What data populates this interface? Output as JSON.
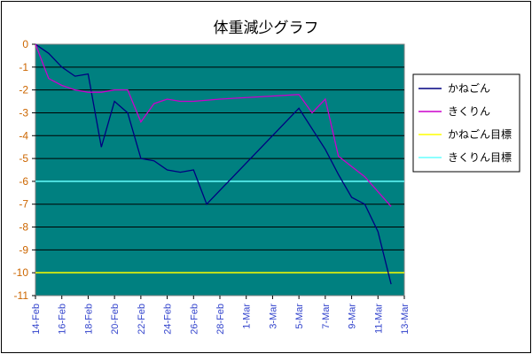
{
  "chart_data": {
    "type": "line",
    "title": "体重減少グラフ",
    "xlabel": "",
    "ylabel": "",
    "ylim": [
      -11,
      0
    ],
    "yticks": [
      0,
      -1,
      -2,
      -3,
      -4,
      -5,
      -6,
      -7,
      -8,
      -9,
      -10,
      -11
    ],
    "x_tick_labels": [
      "14-Feb",
      "16-Feb",
      "18-Feb",
      "20-Feb",
      "22-Feb",
      "24-Feb",
      "26-Feb",
      "28-Feb",
      "1-Mar",
      "3-Mar",
      "5-Mar",
      "7-Mar",
      "9-Mar",
      "11-Mar",
      "13-Mar"
    ],
    "x_range_days": [
      0,
      28
    ],
    "grid": true,
    "legend_position": "right",
    "plot_background": "#008080",
    "series": [
      {
        "name": "かねごん",
        "color": "#000080",
        "points": [
          {
            "x": 0,
            "y": 0.0
          },
          {
            "x": 1,
            "y": -0.4
          },
          {
            "x": 2,
            "y": -1.0
          },
          {
            "x": 3,
            "y": -1.4
          },
          {
            "x": 4,
            "y": -1.3
          },
          {
            "x": 5,
            "y": -4.5
          },
          {
            "x": 6,
            "y": -2.5
          },
          {
            "x": 7,
            "y": -3.0
          },
          {
            "x": 8,
            "y": -5.0
          },
          {
            "x": 9,
            "y": -5.1
          },
          {
            "x": 10,
            "y": -5.5
          },
          {
            "x": 11,
            "y": -5.6
          },
          {
            "x": 12,
            "y": -5.5
          },
          {
            "x": 13,
            "y": -7.0
          },
          {
            "x": 20,
            "y": -2.8
          },
          {
            "x": 22,
            "y": -4.6
          },
          {
            "x": 23,
            "y": -5.7
          },
          {
            "x": 24,
            "y": -6.7
          },
          {
            "x": 25,
            "y": -7.0
          },
          {
            "x": 26,
            "y": -8.2
          },
          {
            "x": 27,
            "y": -10.5
          }
        ]
      },
      {
        "name": "きくりん",
        "color": "#cc00cc",
        "points": [
          {
            "x": 0,
            "y": 0.0
          },
          {
            "x": 1,
            "y": -1.5
          },
          {
            "x": 2,
            "y": -1.8
          },
          {
            "x": 3,
            "y": -2.0
          },
          {
            "x": 4,
            "y": -2.1
          },
          {
            "x": 5,
            "y": -2.1
          },
          {
            "x": 6,
            "y": -2.0
          },
          {
            "x": 7,
            "y": -2.0
          },
          {
            "x": 8,
            "y": -3.4
          },
          {
            "x": 9,
            "y": -2.6
          },
          {
            "x": 10,
            "y": -2.4
          },
          {
            "x": 11,
            "y": -2.5
          },
          {
            "x": 12,
            "y": -2.5
          },
          {
            "x": 14,
            "y": -2.4
          },
          {
            "x": 17,
            "y": -2.3
          },
          {
            "x": 20,
            "y": -2.2
          },
          {
            "x": 21,
            "y": -3.0
          },
          {
            "x": 22,
            "y": -2.4
          },
          {
            "x": 23,
            "y": -4.9
          },
          {
            "x": 25,
            "y": -5.8
          },
          {
            "x": 27,
            "y": -7.1
          }
        ]
      },
      {
        "name": "かねごん目標",
        "color": "#ffff00",
        "constant": -10
      },
      {
        "name": "きくりん目標",
        "color": "#66ffff",
        "constant": -6
      }
    ]
  }
}
